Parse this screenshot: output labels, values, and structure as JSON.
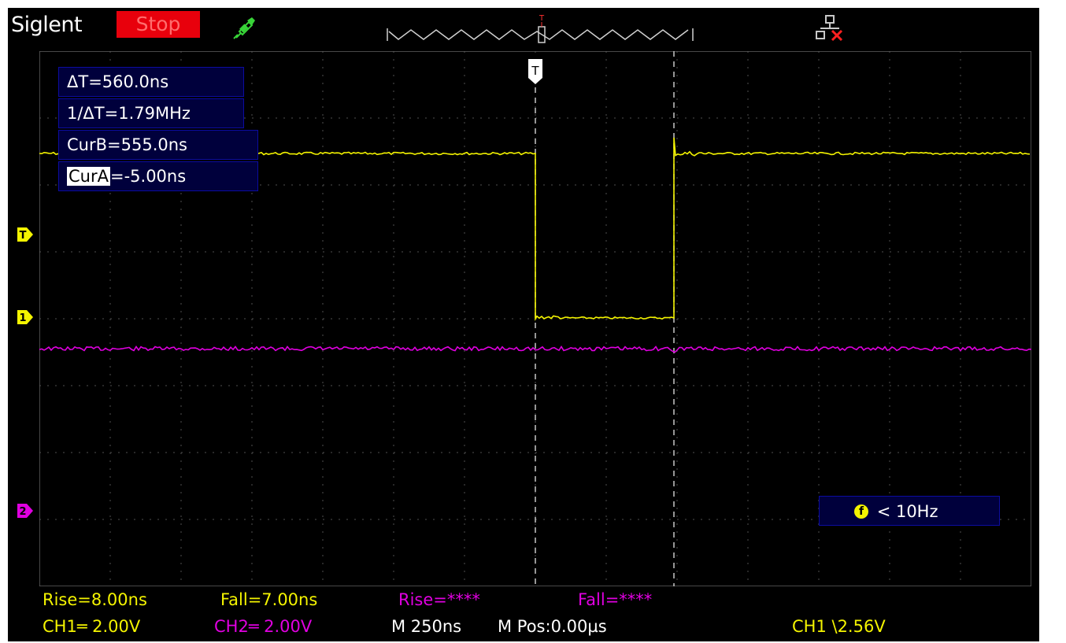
{
  "header": {
    "brand": "Siglent",
    "run_state": "Stop",
    "probe_icon": "probe-icon",
    "network_icon": "network-disconnected-icon"
  },
  "cursors": {
    "delta_t": "ΔT=560.0ns",
    "inv_delta_t": "1/ΔT=1.79MHz",
    "cur_b": "CurB=555.0ns",
    "cur_a_label": "CurA",
    "cur_a_value": "=-5.00ns"
  },
  "markers": {
    "trigger_level": "T",
    "ch1": "1",
    "ch2": "2",
    "trigger_pos": "T"
  },
  "frequency": {
    "icon": "f",
    "text": "< 10Hz"
  },
  "measurements": {
    "ch1_rise": "Rise=8.00ns",
    "ch1_fall": "Fall=7.00ns",
    "ch2_rise": "Rise=****",
    "ch2_fall": "Fall=****"
  },
  "status": {
    "ch1_scale": "CH1═ 2.00V",
    "ch2_scale": "CH2═ 2.00V",
    "timebase": "M 250ns",
    "hpos": "M Pos:0.00µs",
    "trigger": "CH1 \\2.56V"
  },
  "colors": {
    "ch1": "#f4f400",
    "ch2": "#e000e0",
    "stop": "#e8000c",
    "panel": "#00003c"
  }
}
